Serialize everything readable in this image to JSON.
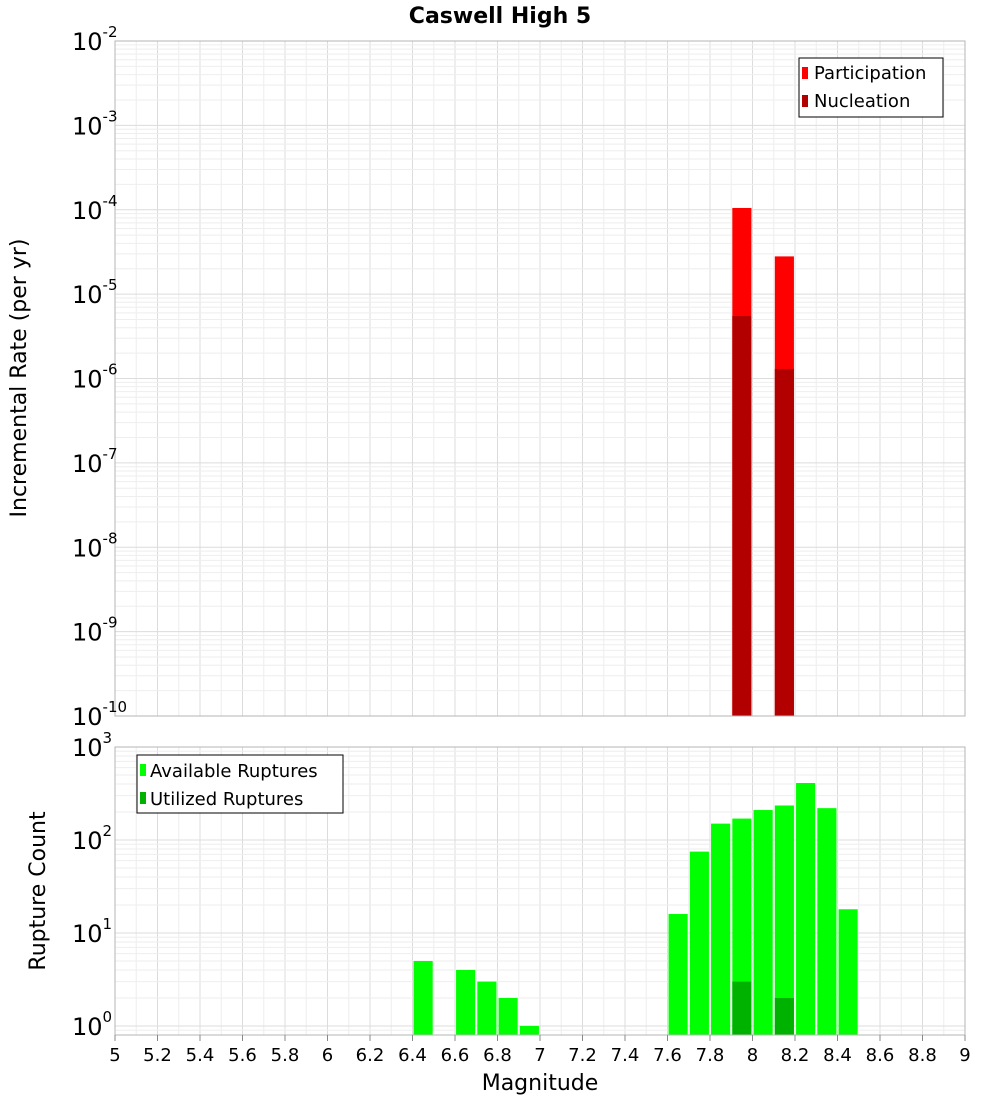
{
  "chart_data": [
    {
      "type": "bar",
      "title": "Caswell High 5",
      "xlabel": "",
      "ylabel": "Incremental Rate (per yr)",
      "xlim": [
        5,
        9
      ],
      "ylim": [
        1e-10,
        0.01
      ],
      "yscale": "log",
      "grid": true,
      "legend_position": "top-right",
      "y_tick_exponents": [
        "-2",
        "-3",
        "-4",
        "-5",
        "-6",
        "-7",
        "-8",
        "-9",
        "-10"
      ],
      "y_tick_base": "10",
      "bar_width": 0.09,
      "series": [
        {
          "name": "Participation",
          "color": "#ff0000",
          "x": [
            7.95,
            8.15
          ],
          "values": [
            0.000105,
            2.8e-05
          ]
        },
        {
          "name": "Nucleation",
          "color": "#b20000",
          "x": [
            7.95,
            8.15
          ],
          "values": [
            5.5e-06,
            1.3e-06
          ]
        }
      ]
    },
    {
      "type": "bar",
      "title": "",
      "xlabel": "Magnitude",
      "ylabel": "Rupture Count",
      "xlim": [
        5,
        9
      ],
      "ylim": [
        0.8,
        1000
      ],
      "yscale": "log",
      "grid": true,
      "legend_position": "top-left",
      "y_tick_exponents": [
        "3",
        "2",
        "1",
        "0"
      ],
      "y_tick_base": "10",
      "x_ticks": [
        "5",
        "5.2",
        "5.4",
        "5.6",
        "5.8",
        "6",
        "6.2",
        "6.4",
        "6.6",
        "6.8",
        "7",
        "7.2",
        "7.4",
        "7.6",
        "7.8",
        "8",
        "8.2",
        "8.4",
        "8.6",
        "8.8",
        "9"
      ],
      "bar_width": 0.09,
      "series": [
        {
          "name": "Available Ruptures",
          "color": "#00ff00",
          "x": [
            6.45,
            6.65,
            6.75,
            6.85,
            6.95,
            7.65,
            7.75,
            7.85,
            7.95,
            8.05,
            8.15,
            8.25,
            8.35,
            8.45
          ],
          "values": [
            5,
            4,
            3,
            2,
            1,
            16,
            75,
            150,
            170,
            210,
            235,
            410,
            220,
            18
          ]
        },
        {
          "name": "Utilized Ruptures",
          "color": "#00b200",
          "x": [
            7.95,
            8.15
          ],
          "values": [
            3,
            2
          ]
        }
      ]
    }
  ]
}
